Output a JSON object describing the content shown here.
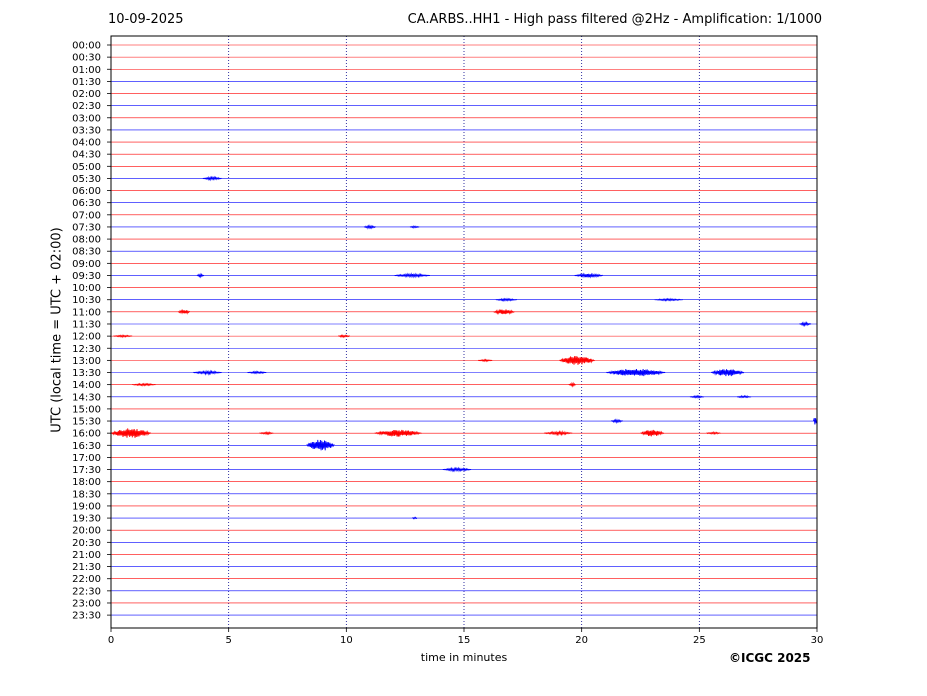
{
  "header": {
    "date": "10-09-2025",
    "title": "CA.ARBS..HH1 - High pass filtered @2Hz - Amplification: 1/1000"
  },
  "footer": {
    "copyright": "©ICGC 2025"
  },
  "colors": {
    "odd": "#ff0000",
    "even": "#0000ff",
    "grid": "#00008b"
  },
  "chart_data": {
    "type": "line",
    "xlabel": "time in minutes",
    "ylabel": "UTC (local time = UTC + 02:00)",
    "xlim": [
      0,
      30
    ],
    "xticks": [
      0,
      5,
      10,
      15,
      20,
      25,
      30
    ],
    "grid": "vertical dotted",
    "rows": [
      "00:00",
      "00:30",
      "01:00",
      "01:30",
      "02:00",
      "02:30",
      "03:00",
      "03:30",
      "04:00",
      "04:30",
      "05:00",
      "05:30",
      "06:00",
      "06:30",
      "07:00",
      "07:30",
      "08:00",
      "08:30",
      "09:00",
      "09:30",
      "10:00",
      "10:30",
      "11:00",
      "11:30",
      "12:00",
      "12:30",
      "13:00",
      "13:30",
      "14:00",
      "14:30",
      "15:00",
      "15:30",
      "16:00",
      "16:30",
      "17:00",
      "17:30",
      "18:00",
      "18:30",
      "19:00",
      "19:30",
      "20:00",
      "20:30",
      "21:00",
      "21:30",
      "22:00",
      "22:30",
      "23:00",
      "23:30"
    ],
    "row_colors": [
      "red",
      "red",
      "red",
      "blue",
      "red",
      "blue",
      "red",
      "blue",
      "red",
      "red",
      "red",
      "blue",
      "red",
      "blue",
      "red",
      "blue",
      "red",
      "blue",
      "red",
      "blue",
      "red",
      "blue",
      "red",
      "blue",
      "red",
      "blue",
      "red",
      "blue",
      "red",
      "blue",
      "red",
      "blue",
      "red",
      "blue",
      "red",
      "blue",
      "red",
      "blue",
      "red",
      "blue",
      "red",
      "blue",
      "red",
      "blue",
      "red",
      "blue",
      "red",
      "blue"
    ],
    "events": [
      {
        "row": "05:30",
        "t": 4.3,
        "amp": 1.5,
        "dur": 0.8
      },
      {
        "row": "07:30",
        "t": 11.0,
        "amp": 1.5,
        "dur": 0.5
      },
      {
        "row": "07:30",
        "t": 12.9,
        "amp": 1,
        "dur": 0.4
      },
      {
        "row": "09:30",
        "t": 3.8,
        "amp": 1.5,
        "dur": 0.3
      },
      {
        "row": "09:30",
        "t": 12.8,
        "amp": 1.5,
        "dur": 1.5
      },
      {
        "row": "09:30",
        "t": 20.3,
        "amp": 2,
        "dur": 1.2
      },
      {
        "row": "10:30",
        "t": 16.8,
        "amp": 1,
        "dur": 0.9
      },
      {
        "row": "10:30",
        "t": 23.7,
        "amp": 1,
        "dur": 1.2
      },
      {
        "row": "11:00",
        "t": 3.1,
        "amp": 2,
        "dur": 0.5
      },
      {
        "row": "11:00",
        "t": 16.7,
        "amp": 2.5,
        "dur": 0.9
      },
      {
        "row": "11:30",
        "t": 29.5,
        "amp": 1.5,
        "dur": 0.5
      },
      {
        "row": "12:00",
        "t": 0.5,
        "amp": 1,
        "dur": 0.8
      },
      {
        "row": "12:00",
        "t": 9.9,
        "amp": 1,
        "dur": 0.5
      },
      {
        "row": "13:00",
        "t": 15.9,
        "amp": 1,
        "dur": 0.6
      },
      {
        "row": "13:00",
        "t": 19.8,
        "amp": 5,
        "dur": 1.5
      },
      {
        "row": "13:30",
        "t": 4.1,
        "amp": 1.5,
        "dur": 1.2
      },
      {
        "row": "13:30",
        "t": 6.2,
        "amp": 1,
        "dur": 0.8
      },
      {
        "row": "13:30",
        "t": 22.3,
        "amp": 4,
        "dur": 2.5
      },
      {
        "row": "13:30",
        "t": 26.2,
        "amp": 4,
        "dur": 1.4
      },
      {
        "row": "14:00",
        "t": 1.4,
        "amp": 1,
        "dur": 1.0
      },
      {
        "row": "14:00",
        "t": 19.6,
        "amp": 1.5,
        "dur": 0.3
      },
      {
        "row": "14:30",
        "t": 24.9,
        "amp": 1,
        "dur": 0.6
      },
      {
        "row": "14:30",
        "t": 26.9,
        "amp": 1,
        "dur": 0.6
      },
      {
        "row": "15:30",
        "t": 21.5,
        "amp": 1.5,
        "dur": 0.5
      },
      {
        "row": "15:30",
        "t": 30.0,
        "amp": 5,
        "dur": 0.3
      },
      {
        "row": "16:00",
        "t": 0.7,
        "amp": 5,
        "dur": 2.0
      },
      {
        "row": "16:00",
        "t": 6.6,
        "amp": 1,
        "dur": 0.6
      },
      {
        "row": "16:00",
        "t": 12.2,
        "amp": 3.5,
        "dur": 2.0
      },
      {
        "row": "16:00",
        "t": 19.0,
        "amp": 1.5,
        "dur": 1.2
      },
      {
        "row": "16:00",
        "t": 23.0,
        "amp": 3.5,
        "dur": 1.0
      },
      {
        "row": "16:00",
        "t": 25.6,
        "amp": 1,
        "dur": 0.6
      },
      {
        "row": "16:30",
        "t": 8.9,
        "amp": 6,
        "dur": 1.2
      },
      {
        "row": "17:30",
        "t": 14.7,
        "amp": 1.5,
        "dur": 1.2
      },
      {
        "row": "19:30",
        "t": 12.9,
        "amp": 1,
        "dur": 0.2
      }
    ]
  }
}
